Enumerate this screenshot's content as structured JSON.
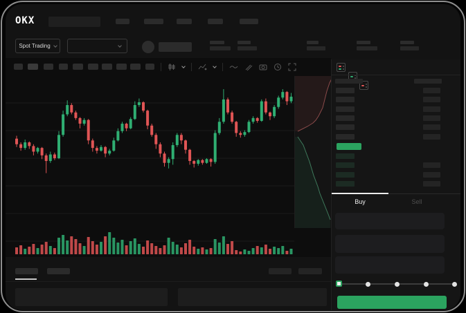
{
  "colors": {
    "green": "#2fae72",
    "red": "#e05555",
    "accent_green": "#2ba35f",
    "screen_bg": "#131313",
    "chart_bg": "#0d0d0d",
    "text": "#e8e8e8",
    "text_dim": "#5a5a5a"
  },
  "topbar": {
    "logo": "OKX",
    "spot_trading_label": "Spot Trading"
  },
  "toolbar": {
    "icons": [
      "candle-style-icon",
      "chevron-down-icon",
      "indicator-icon",
      "chevron-down-icon",
      "line-tool-icon",
      "draw-tool-icon",
      "camera-icon",
      "clock-icon",
      "fullscreen-icon"
    ]
  },
  "orderbook": {
    "display_mode_icons": [
      "book-both-icon",
      "book-bids-icon",
      "book-asks-icon"
    ],
    "asks": [
      {
        "price": true,
        "amount": true
      },
      {
        "price": true,
        "amount": true
      },
      {
        "price": true,
        "amount": true
      },
      {
        "price": true,
        "amount": true
      },
      {
        "price": true,
        "amount": true
      },
      {
        "price": true,
        "amount": true
      }
    ],
    "last_price_highlight": {
      "color": "#2ba35f"
    },
    "bids": [
      {
        "price": true,
        "amount": false
      },
      {
        "price": true,
        "amount": true
      },
      {
        "price": true,
        "amount": true
      },
      {
        "price": true,
        "amount": true
      }
    ],
    "tabs": {
      "buy": "Buy",
      "sell": "Sell",
      "active": "Buy"
    }
  },
  "trade_form": {
    "field_count": 3,
    "slider": {
      "positions": 5,
      "active_index": 0
    },
    "buy_button_label": ""
  },
  "chart_data": [
    {
      "type": "candlestick",
      "title": "",
      "xlabel": "",
      "ylabel": "",
      "note": "No axis tick labels visible in screenshot; OHLC values normalized to 0-100 scale, 66 bars",
      "candles": [
        [
          44,
          47,
          35,
          38
        ],
        [
          38,
          40,
          31,
          34
        ],
        [
          34,
          43,
          32,
          40
        ],
        [
          40,
          41,
          33,
          36
        ],
        [
          36,
          38,
          26,
          30
        ],
        [
          30,
          35,
          28,
          34
        ],
        [
          34,
          35,
          22,
          26
        ],
        [
          26,
          28,
          7,
          20
        ],
        [
          20,
          30,
          18,
          27
        ],
        [
          27,
          29,
          21,
          23
        ],
        [
          23,
          52,
          22,
          48
        ],
        [
          48,
          74,
          46,
          70
        ],
        [
          70,
          85,
          68,
          80
        ],
        [
          80,
          82,
          70,
          72
        ],
        [
          72,
          74,
          64,
          66
        ],
        [
          66,
          67,
          55,
          60
        ],
        [
          60,
          66,
          58,
          64
        ],
        [
          64,
          65,
          38,
          42
        ],
        [
          42,
          44,
          30,
          34
        ],
        [
          34,
          36,
          28,
          31
        ],
        [
          31,
          37,
          30,
          35
        ],
        [
          35,
          36,
          24,
          28
        ],
        [
          28,
          33,
          26,
          31
        ],
        [
          31,
          45,
          30,
          42
        ],
        [
          42,
          55,
          41,
          52
        ],
        [
          52,
          62,
          50,
          60
        ],
        [
          60,
          61,
          52,
          55
        ],
        [
          55,
          67,
          54,
          65
        ],
        [
          65,
          84,
          64,
          80
        ],
        [
          80,
          87,
          78,
          83
        ],
        [
          83,
          84,
          72,
          74
        ],
        [
          74,
          75,
          54,
          58
        ],
        [
          58,
          60,
          46,
          48
        ],
        [
          48,
          50,
          33,
          38
        ],
        [
          38,
          40,
          24,
          28
        ],
        [
          28,
          30,
          14,
          18
        ],
        [
          18,
          24,
          12,
          22
        ],
        [
          22,
          40,
          16,
          37
        ],
        [
          37,
          50,
          35,
          48
        ],
        [
          48,
          50,
          38,
          42
        ],
        [
          42,
          43,
          28,
          32
        ],
        [
          32,
          33,
          16,
          20
        ],
        [
          20,
          21,
          13,
          17
        ],
        [
          17,
          22,
          15,
          21
        ],
        [
          21,
          22,
          16,
          18
        ],
        [
          18,
          23,
          17,
          22
        ],
        [
          22,
          23,
          14,
          19
        ],
        [
          19,
          53,
          17,
          50
        ],
        [
          50,
          66,
          48,
          62
        ],
        [
          62,
          97,
          60,
          86
        ],
        [
          86,
          88,
          70,
          72
        ],
        [
          72,
          74,
          60,
          62
        ],
        [
          62,
          63,
          46,
          50
        ],
        [
          50,
          52,
          45,
          48
        ],
        [
          48,
          53,
          46,
          51
        ],
        [
          51,
          64,
          50,
          62
        ],
        [
          62,
          68,
          60,
          66
        ],
        [
          66,
          67,
          61,
          63
        ],
        [
          63,
          86,
          62,
          84
        ],
        [
          84,
          87,
          70,
          72
        ],
        [
          72,
          73,
          64,
          68
        ],
        [
          68,
          80,
          66,
          78
        ],
        [
          78,
          90,
          76,
          88
        ],
        [
          88,
          97,
          86,
          94
        ],
        [
          94,
          95,
          80,
          84
        ],
        [
          84,
          93,
          82,
          89
        ]
      ]
    },
    {
      "type": "bar",
      "name": "volume",
      "note": "heights in px, color follows candle direction",
      "values": [
        10,
        13,
        8,
        11,
        15,
        9,
        14,
        18,
        12,
        9,
        24,
        28,
        20,
        26,
        22,
        16,
        12,
        25,
        19,
        14,
        18,
        26,
        32,
        24,
        17,
        21,
        13,
        19,
        23,
        15,
        11,
        20,
        16,
        12,
        9,
        13,
        24,
        18,
        14,
        10,
        16,
        21,
        11,
        8,
        10,
        7,
        9,
        22,
        17,
        26,
        15,
        19,
        6,
        4,
        7,
        5,
        9,
        12,
        10,
        14,
        8,
        11,
        9,
        12,
        5,
        8
      ]
    },
    {
      "type": "area",
      "name": "depth-sideways",
      "note": "panel-local px coords, 55x220 panel; asks red upper wedge, bids green lower wedge",
      "asks_line": [
        [
          53,
          4
        ],
        [
          50,
          10
        ],
        [
          48,
          16
        ],
        [
          46,
          22
        ],
        [
          44,
          30
        ],
        [
          42,
          38
        ],
        [
          40,
          46
        ],
        [
          37,
          52
        ],
        [
          34,
          58
        ],
        [
          30,
          64
        ],
        [
          26,
          68
        ],
        [
          18,
          73
        ],
        [
          10,
          77
        ],
        [
          4,
          80
        ]
      ],
      "bids_line": [
        [
          4,
          88
        ],
        [
          8,
          94
        ],
        [
          12,
          100
        ],
        [
          15,
          108
        ],
        [
          18,
          116
        ],
        [
          21,
          124
        ],
        [
          24,
          134
        ],
        [
          27,
          144
        ],
        [
          30,
          152
        ],
        [
          33,
          160
        ],
        [
          36,
          170
        ],
        [
          40,
          180
        ],
        [
          44,
          190
        ],
        [
          48,
          200
        ],
        [
          51,
          208
        ]
      ]
    }
  ]
}
